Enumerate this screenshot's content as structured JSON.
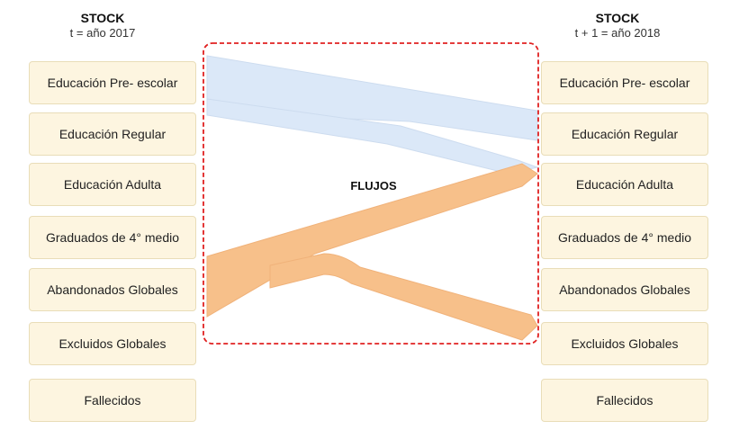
{
  "left_column": {
    "title": "STOCK",
    "subtitle": "t = año 2017",
    "items": [
      "Educación Pre- escolar",
      "Educación Regular",
      "Educación Adulta",
      "Graduados de 4° medio",
      "Abandonados Globales",
      "Excluidos Globales",
      "Fallecidos"
    ]
  },
  "right_column": {
    "title": "STOCK",
    "subtitle": "t + 1 = año 2018",
    "items": [
      "Educación Pre- escolar",
      "Educación Regular",
      "Educación Adulta",
      "Graduados de 4° medio",
      "Abandonados Globales",
      "Excluidos Globales",
      "Fallecidos"
    ]
  },
  "flows_label": "FLUJOS",
  "flows": [
    {
      "from": "Educación Pre- escolar",
      "to": "Educación Regular",
      "color": "#dbe8f8"
    },
    {
      "from": "Educación Pre- escolar",
      "to": "Educación Adulta",
      "color": "#dbe8f8"
    },
    {
      "from": "Abandonados Globales",
      "to": "Educación Adulta",
      "color": "#f7c08a"
    },
    {
      "from": "Abandonados Globales",
      "to": "Excluidos Globales",
      "color": "#f7c08a"
    }
  ],
  "colors": {
    "box_fill": "#fdf5e0",
    "box_border": "#e9ddb8",
    "flow_region_border": "#e02020",
    "blue_flow": "#dbe8f8",
    "orange_flow": "#f7c08a"
  }
}
